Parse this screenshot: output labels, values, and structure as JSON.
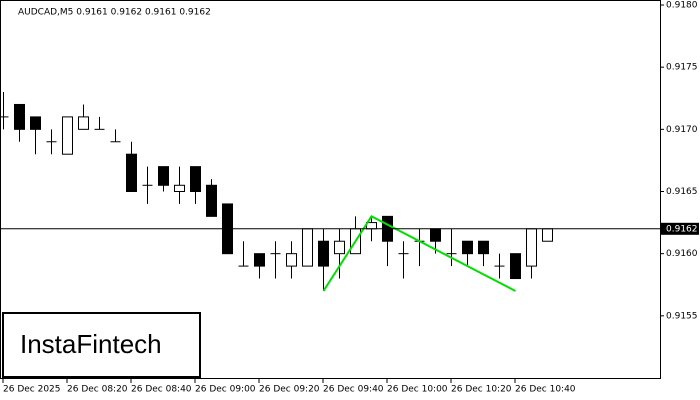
{
  "chart_data": {
    "type": "candlestick",
    "title": "AUDCAD,M5  0.9161 0.9162 0.9161 0.9162",
    "watermark": "InstaFintech",
    "categories": [
      "26 Dec 2025",
      null,
      null,
      null,
      "26 Dec 08:20",
      null,
      null,
      null,
      "26 Dec 08:40",
      null,
      null,
      null,
      "26 Dec 09:00",
      null,
      null,
      null,
      "26 Dec 09:20",
      null,
      null,
      null,
      "26 Dec 09:40",
      null,
      null,
      null,
      "26 Dec 10:00",
      null,
      null,
      null,
      "26 Dec 10:20",
      null,
      null,
      null,
      "26 Dec 10:40",
      null,
      null
    ],
    "open": [
      0.9171,
      0.9172,
      0.9171,
      0.9169,
      0.9168,
      0.917,
      0.917,
      0.9169,
      0.9168,
      0.91655,
      0.9167,
      0.9165,
      0.9167,
      0.91655,
      0.9164,
      0.9159,
      0.916,
      0.916,
      0.9159,
      0.9159,
      0.9161,
      0.916,
      0.916,
      0.9162,
      0.9163,
      0.916,
      0.9161,
      0.9162,
      0.916,
      0.9161,
      0.9161,
      0.9159,
      0.916,
      0.9159,
      0.9161
    ],
    "high": [
      0.9173,
      0.9172,
      0.9171,
      0.917,
      0.9171,
      0.9172,
      0.9171,
      0.917,
      0.9169,
      0.9167,
      0.9167,
      0.9167,
      0.9167,
      0.9166,
      0.9164,
      0.9161,
      0.916,
      0.9161,
      0.9161,
      0.9162,
      0.9162,
      0.9162,
      0.9163,
      0.9163,
      0.9163,
      0.9161,
      0.9162,
      0.9162,
      0.9162,
      0.9161,
      0.9161,
      0.916,
      0.916,
      0.9162,
      0.9162
    ],
    "low": [
      0.917,
      0.9169,
      0.9168,
      0.9168,
      0.9168,
      0.917,
      0.917,
      0.9169,
      0.9165,
      0.9164,
      0.9165,
      0.9164,
      0.9164,
      0.9163,
      0.916,
      0.9159,
      0.9158,
      0.9158,
      0.9158,
      0.9159,
      0.9157,
      0.9158,
      0.916,
      0.9161,
      0.9159,
      0.9158,
      0.9159,
      0.916,
      0.9159,
      0.9159,
      0.9159,
      0.9158,
      0.9158,
      0.9158,
      0.9161
    ],
    "close": [
      0.9171,
      0.917,
      0.917,
      0.9169,
      0.9171,
      0.9171,
      0.917,
      0.9169,
      0.9165,
      0.91655,
      0.91655,
      0.91655,
      0.9165,
      0.9163,
      0.916,
      0.9159,
      0.9159,
      0.916,
      0.916,
      0.9162,
      0.9159,
      0.9161,
      0.9162,
      0.91625,
      0.9161,
      0.916,
      0.9161,
      0.9161,
      0.916,
      0.916,
      0.916,
      0.9159,
      0.9158,
      0.9162,
      0.9162
    ],
    "up_color": "#ffffff",
    "down_color": "#000000",
    "ylim": [
      0.915,
      0.918
    ],
    "yticks": [
      {
        "value": 0.918,
        "label": "0.9180"
      },
      0.9175,
      {
        "value": 0.917,
        "label": "0.9170"
      },
      0.9165,
      {
        "value": 0.916,
        "label": "0.9160"
      },
      0.9155
    ],
    "last_price": 0.9162,
    "pattern": {
      "color": "#00e000",
      "at": [
        20,
        23,
        32
      ],
      "values": [
        0.9157,
        0.9163,
        0.9157
      ]
    }
  }
}
